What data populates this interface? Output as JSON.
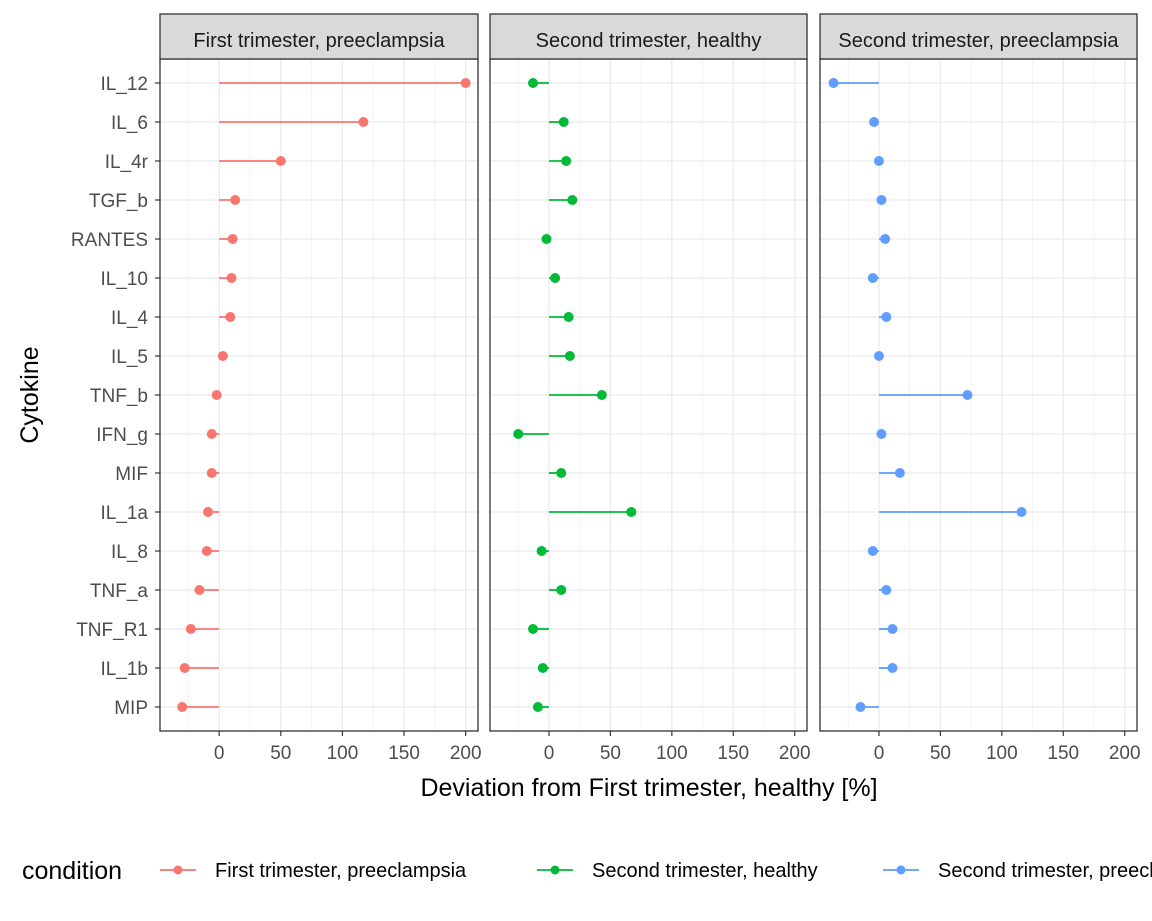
{
  "chart_data": {
    "type": "lollipop",
    "facet_layout": "1 row x 3 panels, shared y axis",
    "xlabel": "Deviation from First trimester, healthy [%]",
    "ylabel": "Cytokine",
    "xlim": [
      -48,
      210
    ],
    "xticks": [
      0,
      50,
      100,
      150,
      200
    ],
    "xtick_labels": [
      "0",
      "50",
      "100",
      "150",
      "200"
    ],
    "grid": true,
    "legend": {
      "title": "condition",
      "position": "bottom"
    },
    "categories": [
      "IL_12",
      "IL_6",
      "IL_4r",
      "TGF_b",
      "RANTES",
      "IL_10",
      "IL_4",
      "IL_5",
      "TNF_b",
      "IFN_g",
      "MIF",
      "IL_1a",
      "IL_8",
      "TNF_a",
      "TNF_R1",
      "IL_1b",
      "MIP"
    ],
    "series": [
      {
        "name": "First trimester, preeclampsia",
        "strip": "First trimester, preeclampsia",
        "color": "#F8766D",
        "values": [
          200,
          117,
          50,
          13,
          11,
          10,
          9,
          3,
          -2,
          -6,
          -6,
          -9,
          -10,
          -16,
          -23,
          -28,
          -30
        ]
      },
      {
        "name": "Second trimester, healthy",
        "strip": "Second trimester, healthy",
        "color": "#00BA38",
        "values": [
          -13,
          12,
          14,
          19,
          -2,
          5,
          16,
          17,
          43,
          -25,
          10,
          67,
          -6,
          10,
          -13,
          -5,
          -9
        ]
      },
      {
        "name": "Second trimester, preeclampsia",
        "strip": "Second trimester, preeclampsia",
        "color": "#619CFF",
        "values": [
          -37,
          -4,
          0,
          2,
          5,
          -5,
          6,
          0,
          72,
          2,
          17,
          116,
          -5,
          6,
          11,
          11,
          -15
        ]
      }
    ]
  },
  "legend_labels": {
    "first": "First trimester, preeclampsia",
    "second": "Second trimester, healthy",
    "third": "Second trimester, preeclampsia"
  }
}
